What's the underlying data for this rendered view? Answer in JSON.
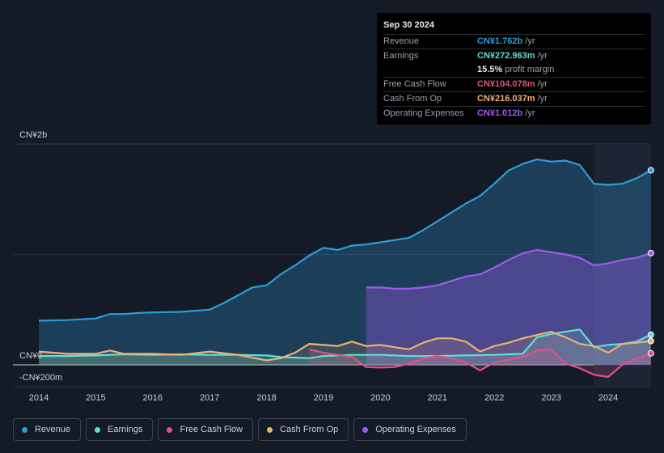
{
  "tooltip": {
    "date": "Sep 30 2024",
    "rows": [
      {
        "label": "Revenue",
        "value": "CN¥1.762b",
        "unit": "/yr",
        "color": "#2d9cdb"
      },
      {
        "label": "Earnings",
        "value": "CN¥272.963m",
        "unit": "/yr",
        "color": "#5ce0d8"
      },
      {
        "label": "",
        "value": "15.5%",
        "unit": "profit margin",
        "color": "#e8eaed"
      },
      {
        "label": "Free Cash Flow",
        "value": "CN¥104.078m",
        "unit": "/yr",
        "color": "#e0508a"
      },
      {
        "label": "Cash From Op",
        "value": "CN¥216.037m",
        "unit": "/yr",
        "color": "#f0b070"
      },
      {
        "label": "Operating Expenses",
        "value": "CN¥1.012b",
        "unit": "/yr",
        "color": "#a259f0"
      }
    ]
  },
  "chart_data": {
    "type": "area",
    "title": "",
    "ylabel_top": "CN¥2b",
    "ylabel_zero": "CN¥0",
    "ylabel_bottom": "-CN¥200m",
    "ylim": [
      -200,
      2000
    ],
    "x_ticks": [
      "2014",
      "2015",
      "2016",
      "2017",
      "2018",
      "2019",
      "2020",
      "2021",
      "2022",
      "2023",
      "2024"
    ],
    "x_tick_values": [
      2014,
      2015,
      2016,
      2017,
      2018,
      2019,
      2020,
      2021,
      2022,
      2023,
      2024
    ],
    "xlim": [
      2013.5,
      2024.8
    ],
    "highlight_from": 2023.75,
    "unit": "CN¥ millions",
    "series": [
      {
        "name": "Revenue",
        "color": "#2d9cdb",
        "points": [
          [
            2014.0,
            400
          ],
          [
            2014.5,
            405
          ],
          [
            2015.0,
            420
          ],
          [
            2015.25,
            460
          ],
          [
            2015.5,
            460
          ],
          [
            2015.75,
            470
          ],
          [
            2016.0,
            475
          ],
          [
            2016.5,
            480
          ],
          [
            2017.0,
            500
          ],
          [
            2017.25,
            560
          ],
          [
            2017.5,
            630
          ],
          [
            2017.75,
            700
          ],
          [
            2018.0,
            720
          ],
          [
            2018.25,
            820
          ],
          [
            2018.5,
            900
          ],
          [
            2018.75,
            990
          ],
          [
            2019.0,
            1060
          ],
          [
            2019.25,
            1040
          ],
          [
            2019.5,
            1080
          ],
          [
            2019.75,
            1090
          ],
          [
            2020.0,
            1110
          ],
          [
            2020.25,
            1130
          ],
          [
            2020.5,
            1150
          ],
          [
            2020.75,
            1220
          ],
          [
            2021.0,
            1300
          ],
          [
            2021.25,
            1380
          ],
          [
            2021.5,
            1460
          ],
          [
            2021.75,
            1530
          ],
          [
            2022.0,
            1640
          ],
          [
            2022.25,
            1760
          ],
          [
            2022.5,
            1820
          ],
          [
            2022.75,
            1860
          ],
          [
            2023.0,
            1840
          ],
          [
            2023.25,
            1850
          ],
          [
            2023.5,
            1810
          ],
          [
            2023.75,
            1640
          ],
          [
            2024.0,
            1630
          ],
          [
            2024.25,
            1640
          ],
          [
            2024.5,
            1690
          ],
          [
            2024.75,
            1762
          ]
        ]
      },
      {
        "name": "Operating Expenses",
        "color": "#a259f0",
        "points": [
          [
            2019.75,
            700
          ],
          [
            2020.0,
            700
          ],
          [
            2020.25,
            690
          ],
          [
            2020.5,
            690
          ],
          [
            2020.75,
            700
          ],
          [
            2021.0,
            720
          ],
          [
            2021.25,
            760
          ],
          [
            2021.5,
            800
          ],
          [
            2021.75,
            820
          ],
          [
            2022.0,
            880
          ],
          [
            2022.25,
            950
          ],
          [
            2022.5,
            1010
          ],
          [
            2022.75,
            1040
          ],
          [
            2023.0,
            1020
          ],
          [
            2023.25,
            1000
          ],
          [
            2023.5,
            970
          ],
          [
            2023.75,
            900
          ],
          [
            2024.0,
            920
          ],
          [
            2024.25,
            950
          ],
          [
            2024.5,
            970
          ],
          [
            2024.75,
            1012
          ]
        ]
      },
      {
        "name": "Earnings",
        "color": "#5ce0d8",
        "points": [
          [
            2014.0,
            80
          ],
          [
            2014.5,
            80
          ],
          [
            2015.0,
            85
          ],
          [
            2015.5,
            95
          ],
          [
            2016.0,
            90
          ],
          [
            2016.5,
            95
          ],
          [
            2017.0,
            90
          ],
          [
            2017.5,
            90
          ],
          [
            2018.0,
            85
          ],
          [
            2018.25,
            70
          ],
          [
            2018.5,
            65
          ],
          [
            2018.75,
            60
          ],
          [
            2019.0,
            80
          ],
          [
            2019.5,
            90
          ],
          [
            2020.0,
            90
          ],
          [
            2020.5,
            80
          ],
          [
            2021.0,
            80
          ],
          [
            2021.5,
            85
          ],
          [
            2022.0,
            90
          ],
          [
            2022.5,
            100
          ],
          [
            2022.75,
            250
          ],
          [
            2023.0,
            280
          ],
          [
            2023.25,
            300
          ],
          [
            2023.5,
            320
          ],
          [
            2023.75,
            160
          ],
          [
            2024.0,
            180
          ],
          [
            2024.25,
            190
          ],
          [
            2024.5,
            210
          ],
          [
            2024.75,
            273
          ]
        ]
      },
      {
        "name": "Free Cash Flow",
        "color": "#e0508a",
        "points": [
          [
            2018.75,
            140
          ],
          [
            2019.0,
            110
          ],
          [
            2019.25,
            90
          ],
          [
            2019.5,
            70
          ],
          [
            2019.75,
            -20
          ],
          [
            2020.0,
            -25
          ],
          [
            2020.25,
            -20
          ],
          [
            2020.5,
            10
          ],
          [
            2020.75,
            60
          ],
          [
            2021.0,
            80
          ],
          [
            2021.25,
            60
          ],
          [
            2021.5,
            20
          ],
          [
            2021.75,
            -50
          ],
          [
            2022.0,
            20
          ],
          [
            2022.25,
            50
          ],
          [
            2022.5,
            70
          ],
          [
            2022.75,
            130
          ],
          [
            2023.0,
            140
          ],
          [
            2023.25,
            10
          ],
          [
            2023.5,
            -30
          ],
          [
            2023.75,
            -90
          ],
          [
            2024.0,
            -110
          ],
          [
            2024.25,
            0
          ],
          [
            2024.5,
            60
          ],
          [
            2024.75,
            104
          ]
        ]
      },
      {
        "name": "Cash From Op",
        "color": "#f0b070",
        "points": [
          [
            2014.0,
            120
          ],
          [
            2014.5,
            100
          ],
          [
            2015.0,
            100
          ],
          [
            2015.25,
            130
          ],
          [
            2015.5,
            100
          ],
          [
            2016.0,
            100
          ],
          [
            2016.5,
            90
          ],
          [
            2017.0,
            120
          ],
          [
            2017.5,
            90
          ],
          [
            2018.0,
            40
          ],
          [
            2018.25,
            60
          ],
          [
            2018.5,
            110
          ],
          [
            2018.75,
            190
          ],
          [
            2019.0,
            180
          ],
          [
            2019.25,
            170
          ],
          [
            2019.5,
            210
          ],
          [
            2019.75,
            170
          ],
          [
            2020.0,
            180
          ],
          [
            2020.25,
            160
          ],
          [
            2020.5,
            140
          ],
          [
            2020.75,
            200
          ],
          [
            2021.0,
            240
          ],
          [
            2021.25,
            240
          ],
          [
            2021.5,
            210
          ],
          [
            2021.75,
            120
          ],
          [
            2022.0,
            170
          ],
          [
            2022.25,
            200
          ],
          [
            2022.5,
            240
          ],
          [
            2022.75,
            270
          ],
          [
            2023.0,
            300
          ],
          [
            2023.25,
            250
          ],
          [
            2023.5,
            190
          ],
          [
            2023.75,
            170
          ],
          [
            2024.0,
            110
          ],
          [
            2024.25,
            190
          ],
          [
            2024.5,
            200
          ],
          [
            2024.75,
            216
          ]
        ]
      }
    ]
  },
  "legend": [
    {
      "label": "Revenue",
      "color": "#2d9cdb"
    },
    {
      "label": "Earnings",
      "color": "#5ce0d8"
    },
    {
      "label": "Free Cash Flow",
      "color": "#e0508a"
    },
    {
      "label": "Cash From Op",
      "color": "#f0b070"
    },
    {
      "label": "Operating Expenses",
      "color": "#a259f0"
    }
  ]
}
